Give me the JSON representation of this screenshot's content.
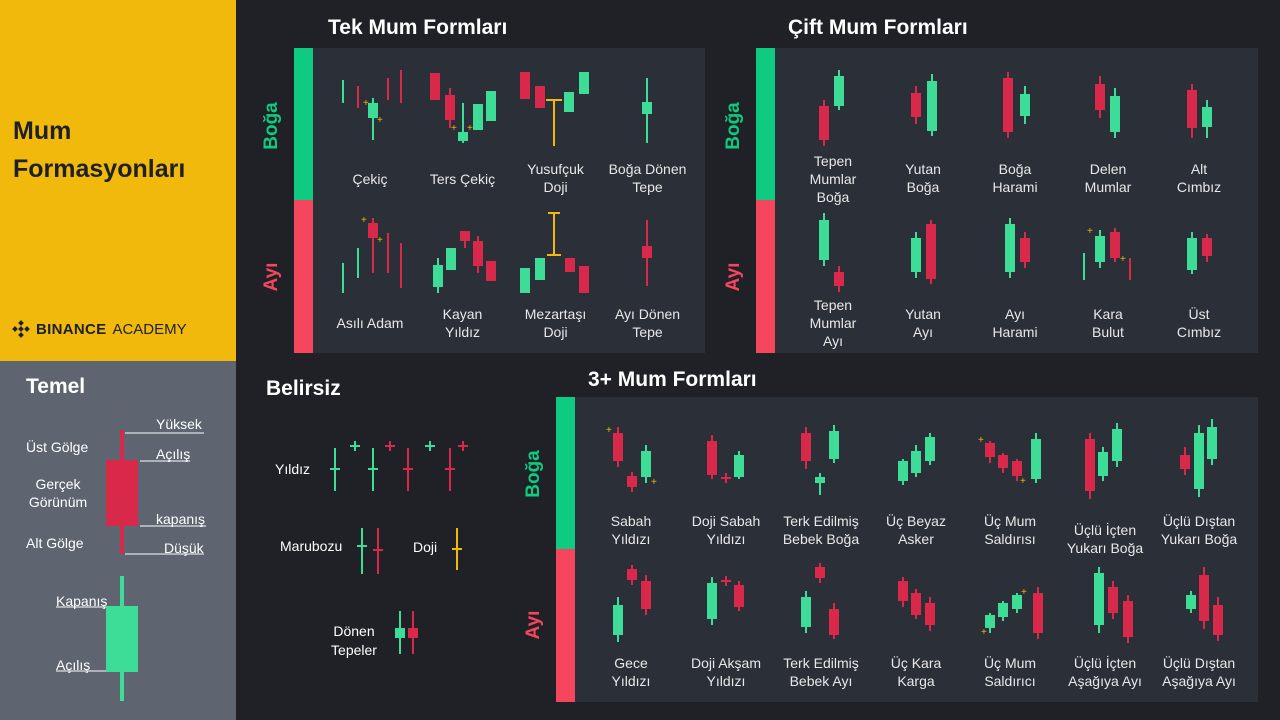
{
  "sidebar": {
    "title": "Mum\nFormasyonları",
    "brand_name": "BINANCE",
    "brand_suffix": "ACADEMY",
    "basics_title": "Temel",
    "anatomy": {
      "high": "Yüksek",
      "upper_shadow": "Üst Gölge",
      "open": "Açılış",
      "real_body": "Gerçek\nGörünüm",
      "close": "kapanış",
      "lower_shadow": "Alt Gölge",
      "low": "Düşük",
      "close2": "Kapanış",
      "open2": "Açılış"
    }
  },
  "single": {
    "title": "Tek Mum Formları",
    "bull_label": "Boğa",
    "bear_label": "Ayı",
    "bull": [
      "Çekiç",
      "Ters Çekiç",
      "Yusufçuk\nDoji",
      "Boğa Dönen\nTepe"
    ],
    "bear": [
      "Asılı Adam",
      "Kayan\nYıldız",
      "Mezartaşı\nDoji",
      "Ayı Dönen\nTepe"
    ]
  },
  "double": {
    "title": "Çift Mum Formları",
    "bull_label": "Boğa",
    "bear_label": "Ayı",
    "bull": [
      "Tepen\nMumlar\nBoğa",
      "Yutan\nBoğa",
      "Boğa\nHarami",
      "Delen\nMumlar",
      "Alt\nCımbız"
    ],
    "bear": [
      "Tepen\nMumlar\nAyı",
      "Yutan\nAyı",
      "Ayı\nHarami",
      "Kara\nBulut",
      "Üst\nCımbız"
    ]
  },
  "neutral": {
    "title": "Belirsiz",
    "star": "Yıldız",
    "marubozu": "Marubozu",
    "doji": "Doji",
    "spinning": "Dönen\nTepeler"
  },
  "triple": {
    "title": "3+ Mum Formları",
    "bull_label": "Boğa",
    "bear_label": "Ayı",
    "bull": [
      "Sabah\nYıldızı",
      "Doji Sabah\nYıldızı",
      "Terk Edilmiş\nBebek Boğa",
      "Üç Beyaz\nAsker",
      "Üç Mum\nSaldırısı",
      "Üçlü İçten\nYukarı Boğa",
      "Üçlü Dıştan\nYukarı Boğa"
    ],
    "bear": [
      "Gece\nYıldızı",
      "Doji Akşam\nYıldızı",
      "Terk Edilmiş\nBebek Ayı",
      "Üç Kara\nKarga",
      "Üç Mum\nSaldırıcı",
      "Üçlü İçten\nAşağıya Ayı",
      "Üçlü Dıştan\nAşağıya Ayı"
    ]
  },
  "colors": {
    "bull": "#3ddc97",
    "bear": "#d9294a",
    "band_bull": "#0ecb81",
    "band_bear": "#f6465d",
    "accent": "#f0b90b"
  }
}
